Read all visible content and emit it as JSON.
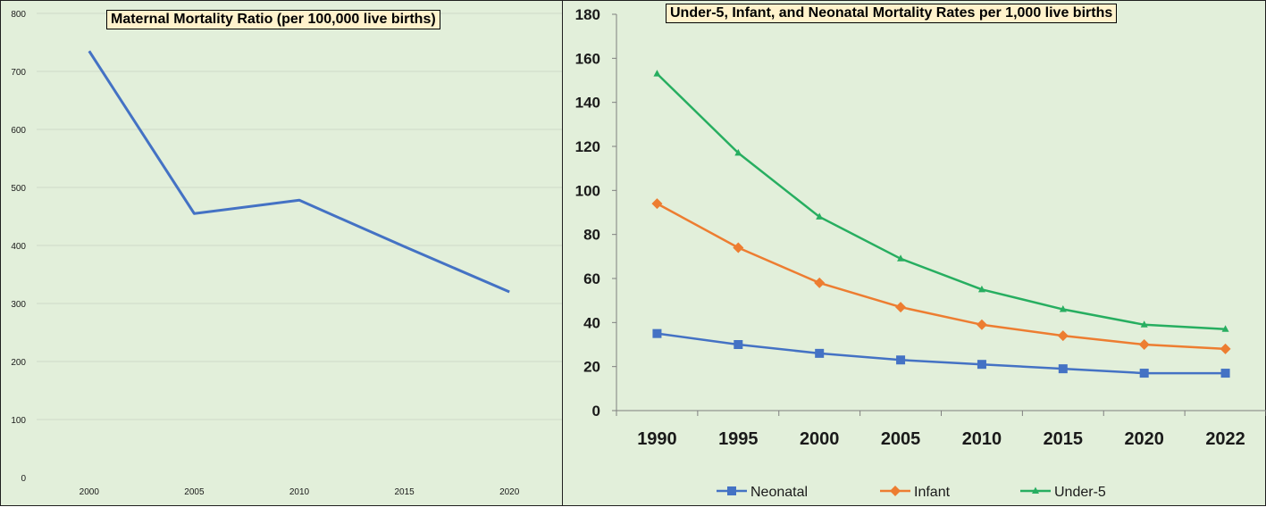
{
  "chart_data": [
    {
      "type": "line",
      "title": "Maternal Mortality Ratio (per 100,000 live births)",
      "x": [
        "2000",
        "2005",
        "2010",
        "2015",
        "2020"
      ],
      "y_ticks": [
        "0",
        "100",
        "200",
        "300",
        "400",
        "500",
        "600",
        "700",
        "800"
      ],
      "ylim": [
        0,
        800
      ],
      "grid": true,
      "series": [
        {
          "values": [
            735,
            455,
            478,
            398,
            320
          ],
          "color": "#4472c4"
        }
      ]
    },
    {
      "type": "line",
      "title": "Under-5, Infant, and Neonatal Mortality Rates per 1,000 live births",
      "x": [
        "1990",
        "1995",
        "2000",
        "2005",
        "2010",
        "2015",
        "2020",
        "2022"
      ],
      "y_ticks": [
        "0",
        "20",
        "40",
        "60",
        "80",
        "100",
        "120",
        "140",
        "160",
        "180"
      ],
      "ylim": [
        0,
        180
      ],
      "grid": false,
      "legend_position": "bottom",
      "series": [
        {
          "name": "Neonatal",
          "marker": "square",
          "color": "#4472c4",
          "values": [
            35,
            30,
            26,
            23,
            21,
            19,
            17,
            17
          ]
        },
        {
          "name": "Infant",
          "marker": "diamond",
          "color": "#ed7d31",
          "values": [
            94,
            74,
            58,
            47,
            39,
            34,
            30,
            28
          ]
        },
        {
          "name": "Under-5",
          "marker": "triangle",
          "color": "#27ae60",
          "values": [
            153,
            117,
            88,
            69,
            55,
            46,
            39,
            37
          ]
        }
      ]
    }
  ]
}
